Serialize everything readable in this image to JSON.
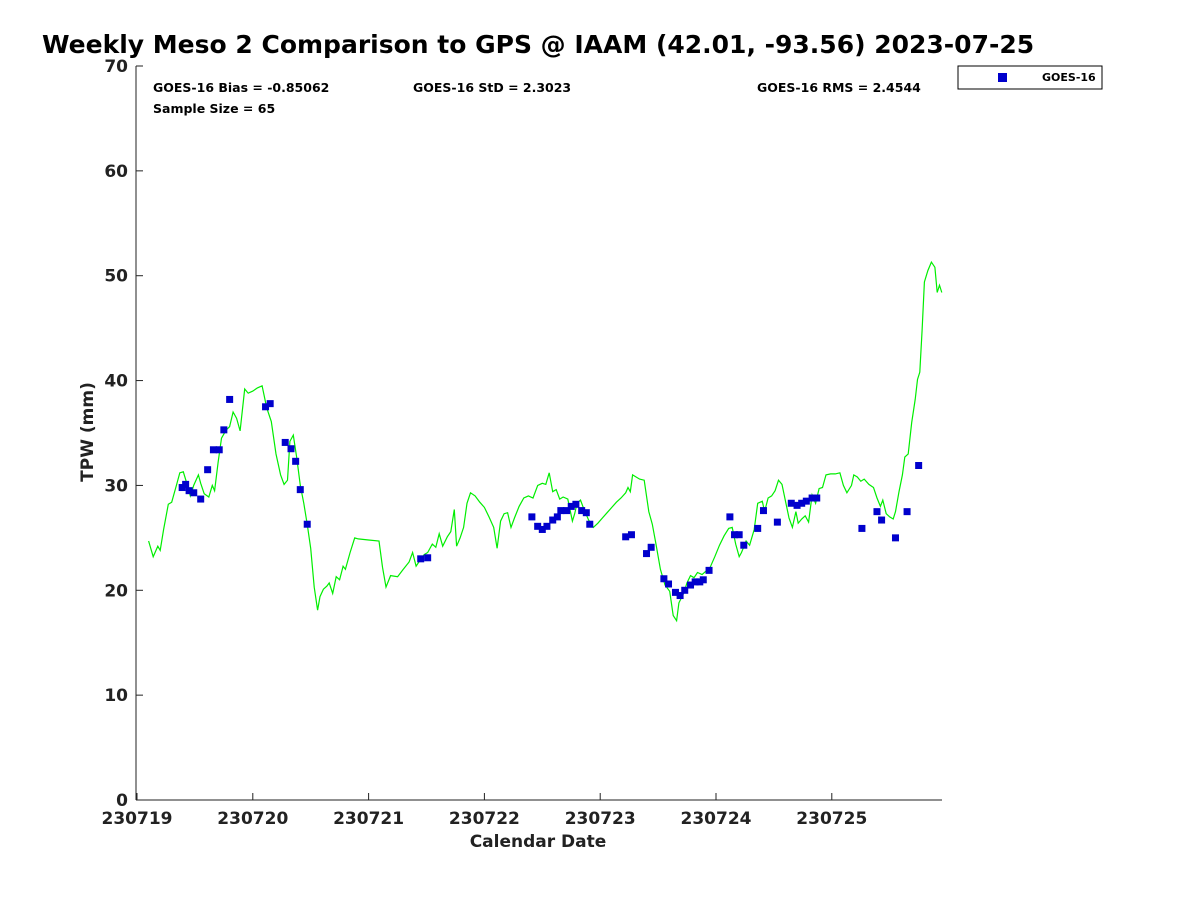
{
  "chart_data": {
    "type": "scatter",
    "title": "Weekly Meso 2 Comparison to GPS @ IAAM (42.01, -93.56) 2023-07-25",
    "xlabel": "Calendar Date",
    "ylabel": "TPW (mm)",
    "x_tick_labels": [
      "230719",
      "230720",
      "230721",
      "230722",
      "230723",
      "230724",
      "230725"
    ],
    "xlim": [
      0,
      6.95
    ],
    "ylim": [
      0,
      70
    ],
    "y_ticks": [
      "0",
      "10",
      "20",
      "30",
      "40",
      "50",
      "60",
      "70"
    ],
    "grid": false,
    "legend_position": "top-right",
    "stats": {
      "bias": "GOES-16 Bias = -0.85062",
      "std": "GOES-16 StD = 2.3023",
      "rms": "GOES-16 RMS = 2.4544",
      "sample": "Sample Size = 65"
    },
    "series": [
      {
        "name": "GOES-16",
        "type": "scatter",
        "color": "#0000cc",
        "points": [
          [
            0.39,
            29.8
          ],
          [
            0.42,
            30.1
          ],
          [
            0.45,
            29.5
          ],
          [
            0.49,
            29.3
          ],
          [
            0.55,
            28.7
          ],
          [
            0.61,
            31.5
          ],
          [
            0.66,
            33.4
          ],
          [
            0.71,
            33.4
          ],
          [
            0.75,
            35.3
          ],
          [
            0.8,
            38.2
          ],
          [
            1.11,
            37.5
          ],
          [
            1.15,
            37.8
          ],
          [
            1.28,
            34.1
          ],
          [
            1.33,
            33.5
          ],
          [
            1.37,
            32.3
          ],
          [
            1.41,
            29.6
          ],
          [
            1.47,
            26.3
          ],
          [
            2.45,
            23.0
          ],
          [
            2.51,
            23.1
          ],
          [
            3.41,
            27.0
          ],
          [
            3.46,
            26.1
          ],
          [
            3.5,
            25.8
          ],
          [
            3.54,
            26.1
          ],
          [
            3.59,
            26.7
          ],
          [
            3.63,
            27.0
          ],
          [
            3.66,
            27.6
          ],
          [
            3.71,
            27.6
          ],
          [
            3.75,
            28.0
          ],
          [
            3.79,
            28.2
          ],
          [
            3.84,
            27.6
          ],
          [
            3.88,
            27.4
          ],
          [
            3.91,
            26.3
          ],
          [
            4.22,
            25.1
          ],
          [
            4.27,
            25.3
          ],
          [
            4.4,
            23.5
          ],
          [
            4.44,
            24.1
          ],
          [
            4.55,
            21.1
          ],
          [
            4.59,
            20.6
          ],
          [
            4.65,
            19.8
          ],
          [
            4.69,
            19.5
          ],
          [
            4.73,
            20.0
          ],
          [
            4.78,
            20.5
          ],
          [
            4.82,
            20.8
          ],
          [
            4.86,
            20.8
          ],
          [
            4.89,
            21.0
          ],
          [
            4.94,
            21.9
          ],
          [
            5.12,
            27.0
          ],
          [
            5.16,
            25.3
          ],
          [
            5.2,
            25.3
          ],
          [
            5.24,
            24.3
          ],
          [
            5.36,
            25.9
          ],
          [
            5.41,
            27.6
          ],
          [
            5.53,
            26.5
          ],
          [
            5.65,
            28.3
          ],
          [
            5.7,
            28.1
          ],
          [
            5.74,
            28.3
          ],
          [
            5.78,
            28.5
          ],
          [
            5.83,
            28.8
          ],
          [
            5.87,
            28.8
          ],
          [
            6.26,
            25.9
          ],
          [
            6.39,
            27.5
          ],
          [
            6.43,
            26.7
          ],
          [
            6.55,
            25.0
          ],
          [
            6.65,
            27.5
          ],
          [
            6.75,
            31.9
          ]
        ]
      },
      {
        "name": "",
        "type": "line",
        "color": "#00ee00",
        "points": [
          [
            0.1,
            24.7
          ],
          [
            0.14,
            23.2
          ],
          [
            0.18,
            24.2
          ],
          [
            0.2,
            23.8
          ],
          [
            0.23,
            25.8
          ],
          [
            0.27,
            28.2
          ],
          [
            0.3,
            28.4
          ],
          [
            0.34,
            30.0
          ],
          [
            0.37,
            31.2
          ],
          [
            0.4,
            31.3
          ],
          [
            0.43,
            30.2
          ],
          [
            0.46,
            29.0
          ],
          [
            0.49,
            30.0
          ],
          [
            0.53,
            31.0
          ],
          [
            0.55,
            30.2
          ],
          [
            0.58,
            29.2
          ],
          [
            0.62,
            28.9
          ],
          [
            0.65,
            30.0
          ],
          [
            0.67,
            29.5
          ],
          [
            0.7,
            32.2
          ],
          [
            0.73,
            34.5
          ],
          [
            0.77,
            35.3
          ],
          [
            0.8,
            35.6
          ],
          [
            0.83,
            37.0
          ],
          [
            0.86,
            36.4
          ],
          [
            0.89,
            35.2
          ],
          [
            0.93,
            39.2
          ],
          [
            0.96,
            38.8
          ],
          [
            1.0,
            39.0
          ],
          [
            1.04,
            39.3
          ],
          [
            1.08,
            39.5
          ],
          [
            1.12,
            37.4
          ],
          [
            1.16,
            36.1
          ],
          [
            1.2,
            33.0
          ],
          [
            1.24,
            31.0
          ],
          [
            1.27,
            30.1
          ],
          [
            1.3,
            30.5
          ],
          [
            1.32,
            34.2
          ],
          [
            1.35,
            34.8
          ],
          [
            1.38,
            32.6
          ],
          [
            1.41,
            30.0
          ],
          [
            1.44,
            28.3
          ],
          [
            1.47,
            26.3
          ],
          [
            1.5,
            24.0
          ],
          [
            1.53,
            20.3
          ],
          [
            1.56,
            18.1
          ],
          [
            1.58,
            19.4
          ],
          [
            1.61,
            20.1
          ],
          [
            1.64,
            20.4
          ],
          [
            1.66,
            20.7
          ],
          [
            1.69,
            19.7
          ],
          [
            1.72,
            21.3
          ],
          [
            1.75,
            21.0
          ],
          [
            1.78,
            22.3
          ],
          [
            1.8,
            22.0
          ],
          [
            1.84,
            23.6
          ],
          [
            1.88,
            25.0
          ],
          [
            1.91,
            24.9
          ],
          [
            2.0,
            24.8
          ],
          [
            2.09,
            24.7
          ],
          [
            2.12,
            22.2
          ],
          [
            2.15,
            20.3
          ],
          [
            2.19,
            21.4
          ],
          [
            2.25,
            21.3
          ],
          [
            2.3,
            22.0
          ],
          [
            2.35,
            22.7
          ],
          [
            2.38,
            23.6
          ],
          [
            2.41,
            22.3
          ],
          [
            2.44,
            22.8
          ],
          [
            2.48,
            23.4
          ],
          [
            2.51,
            23.6
          ],
          [
            2.55,
            24.4
          ],
          [
            2.58,
            24.1
          ],
          [
            2.61,
            25.4
          ],
          [
            2.64,
            24.2
          ],
          [
            2.68,
            25.1
          ],
          [
            2.71,
            25.6
          ],
          [
            2.74,
            27.7
          ],
          [
            2.76,
            24.2
          ],
          [
            2.79,
            25.0
          ],
          [
            2.82,
            26.0
          ],
          [
            2.85,
            28.3
          ],
          [
            2.88,
            29.3
          ],
          [
            2.92,
            29.0
          ],
          [
            2.96,
            28.4
          ],
          [
            3.0,
            27.9
          ],
          [
            3.04,
            27.0
          ],
          [
            3.08,
            26.0
          ],
          [
            3.11,
            24.0
          ],
          [
            3.14,
            26.6
          ],
          [
            3.17,
            27.3
          ],
          [
            3.2,
            27.4
          ],
          [
            3.23,
            26.0
          ],
          [
            3.26,
            26.9
          ],
          [
            3.3,
            28.0
          ],
          [
            3.34,
            28.8
          ],
          [
            3.38,
            29.0
          ],
          [
            3.42,
            28.8
          ],
          [
            3.46,
            30.0
          ],
          [
            3.5,
            30.2
          ],
          [
            3.53,
            30.1
          ],
          [
            3.56,
            31.2
          ],
          [
            3.59,
            29.4
          ],
          [
            3.62,
            29.6
          ],
          [
            3.65,
            28.7
          ],
          [
            3.68,
            28.9
          ],
          [
            3.72,
            28.7
          ],
          [
            3.76,
            26.6
          ],
          [
            3.78,
            27.3
          ],
          [
            3.8,
            28.3
          ],
          [
            3.83,
            28.6
          ],
          [
            3.86,
            27.7
          ],
          [
            3.9,
            26.7
          ],
          [
            3.94,
            26.0
          ],
          [
            3.98,
            26.4
          ],
          [
            4.02,
            26.9
          ],
          [
            4.06,
            27.4
          ],
          [
            4.1,
            27.9
          ],
          [
            4.14,
            28.4
          ],
          [
            4.18,
            28.8
          ],
          [
            4.22,
            29.3
          ],
          [
            4.24,
            29.8
          ],
          [
            4.26,
            29.4
          ],
          [
            4.28,
            31.0
          ],
          [
            4.31,
            30.8
          ],
          [
            4.34,
            30.6
          ],
          [
            4.38,
            30.5
          ],
          [
            4.42,
            27.5
          ],
          [
            4.45,
            26.3
          ],
          [
            4.48,
            24.5
          ],
          [
            4.52,
            22.0
          ],
          [
            4.56,
            20.5
          ],
          [
            4.6,
            19.9
          ],
          [
            4.63,
            17.6
          ],
          [
            4.66,
            17.1
          ],
          [
            4.68,
            18.8
          ],
          [
            4.72,
            19.7
          ],
          [
            4.75,
            20.7
          ],
          [
            4.78,
            21.4
          ],
          [
            4.81,
            21.2
          ],
          [
            4.84,
            21.7
          ],
          [
            4.88,
            21.5
          ],
          [
            4.92,
            21.9
          ],
          [
            4.95,
            22.2
          ],
          [
            4.99,
            23.2
          ],
          [
            5.03,
            24.3
          ],
          [
            5.07,
            25.2
          ],
          [
            5.11,
            25.9
          ],
          [
            5.14,
            26.0
          ],
          [
            5.17,
            24.4
          ],
          [
            5.2,
            23.2
          ],
          [
            5.22,
            23.6
          ],
          [
            5.26,
            24.7
          ],
          [
            5.29,
            24.3
          ],
          [
            5.33,
            25.8
          ],
          [
            5.36,
            28.3
          ],
          [
            5.4,
            28.5
          ],
          [
            5.42,
            27.5
          ],
          [
            5.45,
            28.8
          ],
          [
            5.48,
            29.0
          ],
          [
            5.51,
            29.5
          ],
          [
            5.54,
            30.5
          ],
          [
            5.57,
            30.1
          ],
          [
            5.6,
            28.5
          ],
          [
            5.63,
            26.9
          ],
          [
            5.66,
            26.0
          ],
          [
            5.69,
            27.5
          ],
          [
            5.71,
            26.4
          ],
          [
            5.74,
            26.8
          ],
          [
            5.77,
            27.1
          ],
          [
            5.8,
            26.5
          ],
          [
            5.83,
            29.1
          ],
          [
            5.86,
            28.3
          ],
          [
            5.89,
            29.7
          ],
          [
            5.92,
            29.8
          ],
          [
            5.95,
            31.0
          ],
          [
            5.99,
            31.1
          ],
          [
            6.03,
            31.1
          ],
          [
            6.07,
            31.2
          ],
          [
            6.1,
            30.0
          ],
          [
            6.13,
            29.3
          ],
          [
            6.17,
            30.0
          ],
          [
            6.19,
            31.0
          ],
          [
            6.22,
            30.8
          ],
          [
            6.25,
            30.4
          ],
          [
            6.28,
            30.6
          ],
          [
            6.32,
            30.1
          ],
          [
            6.36,
            29.8
          ],
          [
            6.39,
            28.8
          ],
          [
            6.42,
            28.0
          ],
          [
            6.44,
            28.6
          ],
          [
            6.47,
            27.3
          ],
          [
            6.5,
            27.0
          ],
          [
            6.53,
            26.8
          ],
          [
            6.55,
            27.5
          ],
          [
            6.58,
            29.4
          ],
          [
            6.61,
            31.0
          ],
          [
            6.63,
            32.7
          ],
          [
            6.66,
            33.0
          ],
          [
            6.69,
            36.0
          ],
          [
            6.72,
            38.2
          ],
          [
            6.74,
            40.1
          ],
          [
            6.76,
            40.8
          ],
          [
            6.78,
            44.8
          ],
          [
            6.8,
            49.4
          ],
          [
            6.83,
            50.5
          ],
          [
            6.86,
            51.3
          ],
          [
            6.89,
            50.8
          ],
          [
            6.91,
            48.4
          ],
          [
            6.93,
            49.1
          ],
          [
            6.95,
            48.4
          ]
        ]
      }
    ]
  }
}
